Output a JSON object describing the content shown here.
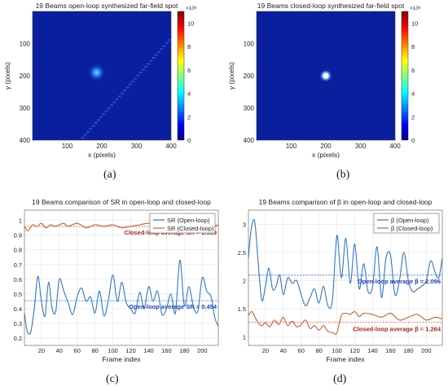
{
  "colors": {
    "heatmap_bg": "#0a1f9e",
    "sr_open": "#2f78c4",
    "sr_closed": "#c0632a",
    "closed_avg_line": "#e0453a",
    "open_avg_line": "#3b63e0",
    "closed_avg_text": "#b0241a",
    "open_avg_text": "#1a3fc4",
    "beta_open": "#2f78c4",
    "beta_closed": "#c0632a"
  },
  "panels": {
    "a": {
      "label": "(a)"
    },
    "b": {
      "label": "(b)"
    },
    "c": {
      "label": "(c)"
    },
    "d": {
      "label": "(d)"
    }
  },
  "chart_data": [
    {
      "id": "a",
      "type": "heatmap",
      "title": "19 Beams open-loop synthesized far-field spot",
      "xlabel": "x (pixels)",
      "ylabel": "y (pixels)",
      "xlim": [
        0,
        400
      ],
      "ylim": [
        0,
        400
      ],
      "xticks": [
        "100",
        "200",
        "300",
        "400"
      ],
      "yticks": [
        "100",
        "200",
        "300",
        "400"
      ],
      "colorbar": {
        "exponent_label": "×10⁸",
        "ticks": [
          "0",
          "2",
          "4",
          "6",
          "8",
          "10"
        ],
        "range": [
          0,
          11
        ]
      },
      "spot": {
        "x": 185,
        "y": 190,
        "intensity": 0.45
      },
      "artifact": "diagonal streak from lower-left to upper-right"
    },
    {
      "id": "b",
      "type": "heatmap",
      "title": "19 Beams closed-loop synthesized far-field spot",
      "xlabel": "x (pixels)",
      "ylabel": "y (pixels)",
      "xlim": [
        0,
        400
      ],
      "ylim": [
        0,
        400
      ],
      "xticks": [
        "100",
        "200",
        "300",
        "400"
      ],
      "yticks": [
        "100",
        "200",
        "300",
        "400"
      ],
      "colorbar": {
        "exponent_label": "×10⁸",
        "ticks": [
          "0",
          "2",
          "4",
          "6",
          "8",
          "10"
        ],
        "range": [
          0,
          11
        ]
      },
      "spot": {
        "x": 200,
        "y": 200,
        "intensity": 1.0
      }
    },
    {
      "id": "c",
      "type": "line",
      "title": "19 Beams comparison of SR in open-loop and closed-loop",
      "xlabel": "Frame index",
      "ylabel": "",
      "xlim": [
        1,
        218
      ],
      "ylim": [
        0.15,
        1.07
      ],
      "xticks": [
        20,
        40,
        60,
        80,
        100,
        120,
        140,
        160,
        180,
        200
      ],
      "yticks": [
        0.2,
        0.3,
        0.4,
        0.5,
        0.6,
        0.7,
        0.8,
        0.9,
        1
      ],
      "ytick_labels": [
        "0.2",
        "0.3",
        "0.4",
        "0.5",
        "0.6",
        "0.7",
        "0.8",
        "0.9",
        "1"
      ],
      "legend": [
        "SR (Open-loop)",
        "SR (Closed-loop)"
      ],
      "legend_position": "top-right",
      "series": [
        {
          "name": "SR (Open-loop)",
          "x": [
            1,
            4,
            8,
            12,
            16,
            20,
            24,
            28,
            32,
            36,
            40,
            45,
            50,
            55,
            60,
            65,
            70,
            75,
            80,
            85,
            90,
            95,
            100,
            105,
            110,
            115,
            120,
            125,
            130,
            135,
            140,
            145,
            150,
            155,
            160,
            165,
            170,
            175,
            180,
            185,
            190,
            195,
            200,
            205,
            210,
            214,
            218
          ],
          "y": [
            0.37,
            0.25,
            0.24,
            0.4,
            0.62,
            0.45,
            0.35,
            0.58,
            0.4,
            0.38,
            0.6,
            0.52,
            0.44,
            0.36,
            0.48,
            0.54,
            0.45,
            0.48,
            0.37,
            0.52,
            0.35,
            0.46,
            0.63,
            0.45,
            0.58,
            0.44,
            0.4,
            0.37,
            0.51,
            0.4,
            0.55,
            0.45,
            0.52,
            0.36,
            0.4,
            0.5,
            0.37,
            0.73,
            0.42,
            0.55,
            0.42,
            0.38,
            0.61,
            0.52,
            0.48,
            0.34,
            0.28
          ]
        },
        {
          "name": "SR (Closed-loop)",
          "x": [
            1,
            5,
            10,
            15,
            20,
            25,
            30,
            35,
            40,
            45,
            50,
            60,
            70,
            80,
            90,
            100,
            110,
            120,
            130,
            140,
            150,
            160,
            170,
            180,
            190,
            200,
            210,
            218
          ],
          "y": [
            0.96,
            0.93,
            0.97,
            0.96,
            0.98,
            0.95,
            0.97,
            0.96,
            0.97,
            0.98,
            0.96,
            0.98,
            0.95,
            0.97,
            0.96,
            0.97,
            0.95,
            0.96,
            0.97,
            0.98,
            0.96,
            0.97,
            0.95,
            0.96,
            0.94,
            0.97,
            0.96,
            0.97
          ]
        }
      ],
      "averages": [
        {
          "label": "Closed-loop average SR = 0.959",
          "value": 0.959
        },
        {
          "label": "Open-loop average SR = 0.454",
          "value": 0.454
        }
      ]
    },
    {
      "id": "d",
      "type": "line",
      "title": "19 Beams comparison of β in open-loop and closed-loop",
      "xlabel": "Frame index",
      "ylabel": "",
      "xlim": [
        1,
        218
      ],
      "ylim": [
        0.85,
        3.25
      ],
      "xticks": [
        20,
        40,
        60,
        80,
        100,
        120,
        140,
        160,
        180,
        200
      ],
      "yticks": [
        1,
        1.5,
        2,
        2.5,
        3
      ],
      "ytick_labels": [
        "1",
        "1.5",
        "2",
        "2.5",
        "3"
      ],
      "legend": [
        "β (Open-loop)",
        "β (Closed-loop)"
      ],
      "legend_position": "top-right",
      "series": [
        {
          "name": "β (Open-loop)",
          "x": [
            1,
            4,
            8,
            12,
            16,
            20,
            24,
            28,
            32,
            36,
            40,
            45,
            50,
            55,
            60,
            65,
            70,
            75,
            80,
            85,
            90,
            95,
            100,
            105,
            110,
            115,
            120,
            125,
            130,
            135,
            140,
            145,
            150,
            155,
            160,
            165,
            170,
            175,
            180,
            185,
            190,
            195,
            200,
            205,
            210,
            214,
            218
          ],
          "y": [
            2.4,
            2.9,
            3.05,
            2.3,
            1.65,
            1.9,
            2.22,
            1.85,
            1.9,
            2.1,
            1.75,
            2.05,
            1.95,
            2.0,
            1.75,
            1.55,
            1.7,
            1.85,
            1.6,
            1.9,
            1.55,
            1.65,
            2.8,
            2.05,
            2.75,
            1.95,
            2.65,
            1.85,
            2.3,
            1.8,
            1.9,
            2.6,
            1.7,
            2.4,
            2.45,
            1.75,
            2.0,
            2.5,
            2.0,
            1.8,
            1.85,
            1.9,
            2.0,
            2.35,
            2.15,
            2.05,
            2.4
          ]
        },
        {
          "name": "β (Closed-loop)",
          "x": [
            1,
            5,
            10,
            15,
            20,
            25,
            30,
            35,
            40,
            45,
            50,
            55,
            60,
            65,
            70,
            75,
            80,
            85,
            90,
            95,
            100,
            105,
            110,
            115,
            120,
            125,
            130,
            140,
            150,
            160,
            170,
            180,
            190,
            200,
            210,
            218
          ],
          "y": [
            1.38,
            1.45,
            1.3,
            1.2,
            1.25,
            1.18,
            1.3,
            1.22,
            1.35,
            1.2,
            1.28,
            1.18,
            1.22,
            1.3,
            1.15,
            1.2,
            1.12,
            1.2,
            1.1,
            1.08,
            1.07,
            1.38,
            1.42,
            1.4,
            1.45,
            1.36,
            1.42,
            1.4,
            1.35,
            1.42,
            1.3,
            1.35,
            1.4,
            1.3,
            1.35,
            1.32
          ]
        }
      ],
      "averages": [
        {
          "label": "Open-loop average β = 2.096",
          "value": 2.096
        },
        {
          "label": "Closed-loop average β = 1.264",
          "value": 1.264
        }
      ]
    }
  ]
}
